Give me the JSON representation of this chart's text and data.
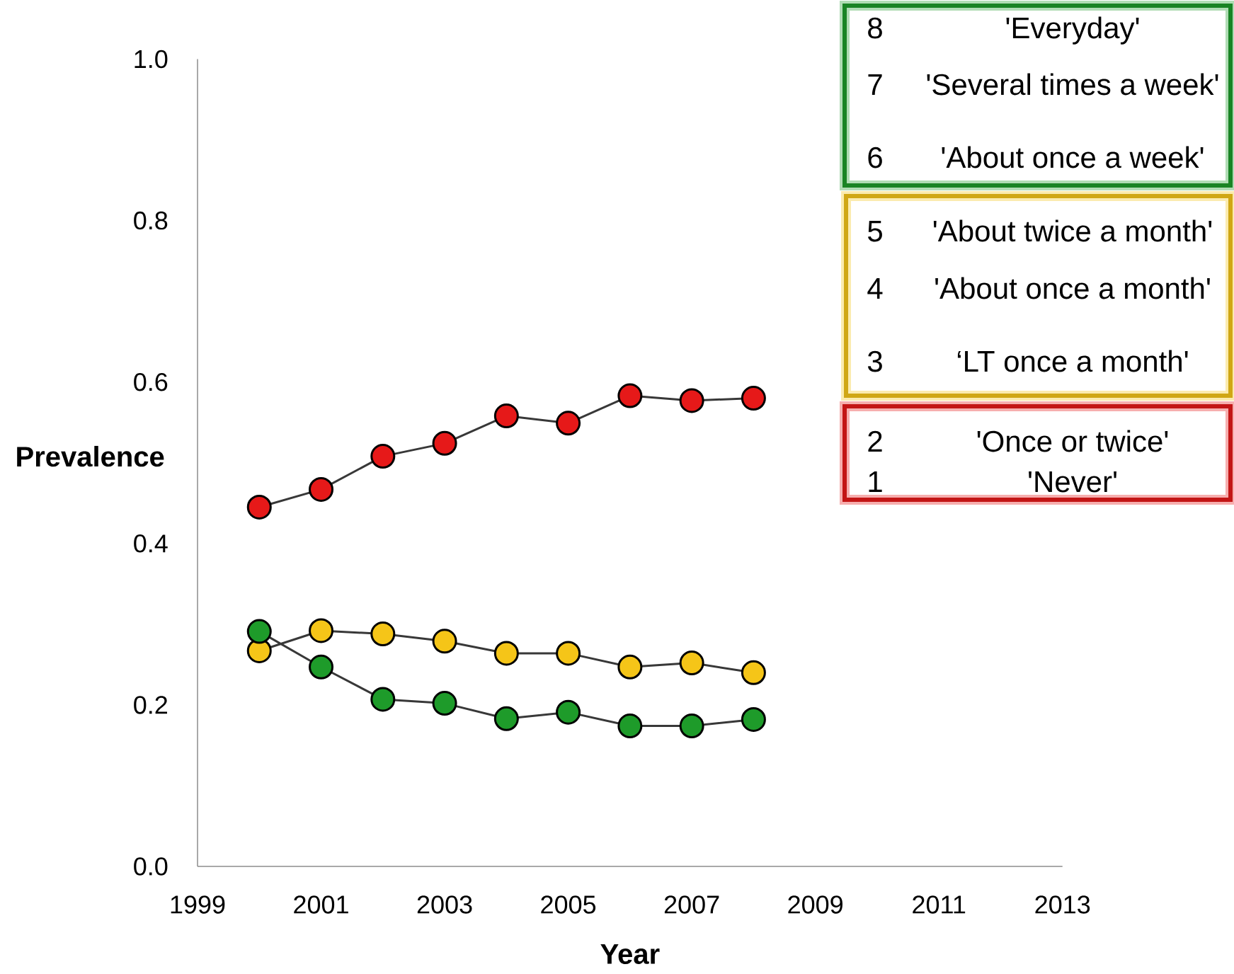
{
  "chart_data": {
    "type": "line",
    "xlabel": "Year",
    "ylabel": "Prevalence",
    "x": [
      2000,
      2001,
      2002,
      2003,
      2004,
      2005,
      2006,
      2007,
      2008
    ],
    "series": [
      {
        "color": "#1e9b2a",
        "values": [
          0.291,
          0.247,
          0.207,
          0.202,
          0.183,
          0.191,
          0.174,
          0.174,
          0.182
        ]
      },
      {
        "color": "#f5c518",
        "values": [
          0.267,
          0.292,
          0.288,
          0.279,
          0.264,
          0.264,
          0.247,
          0.252,
          0.24
        ]
      },
      {
        "color": "#e61919",
        "values": [
          0.445,
          0.467,
          0.508,
          0.524,
          0.558,
          0.549,
          0.583,
          0.577,
          0.58
        ]
      }
    ],
    "xlim": [
      1999,
      2013
    ],
    "xticks": [
      1999,
      2001,
      2003,
      2005,
      2007,
      2009,
      2011,
      2013
    ],
    "ylim": [
      0,
      1
    ],
    "yticks": [
      {
        "value": 0,
        "label": "0.0"
      },
      0.2,
      0.4,
      0.6,
      0.8,
      {
        "value": 1,
        "label": "1.0"
      }
    ],
    "marker": "circle",
    "line_style": "solid",
    "annotations": [
      "8",
      "'Everyday'",
      "7",
      "'Several times a week'",
      "6",
      "'About once a week'",
      "5",
      "'About twice a month'",
      "4",
      "'About once a month'",
      "3",
      "‘LT once a month'",
      "2",
      "'Once or twice'",
      "1",
      "'Never'"
    ]
  }
}
